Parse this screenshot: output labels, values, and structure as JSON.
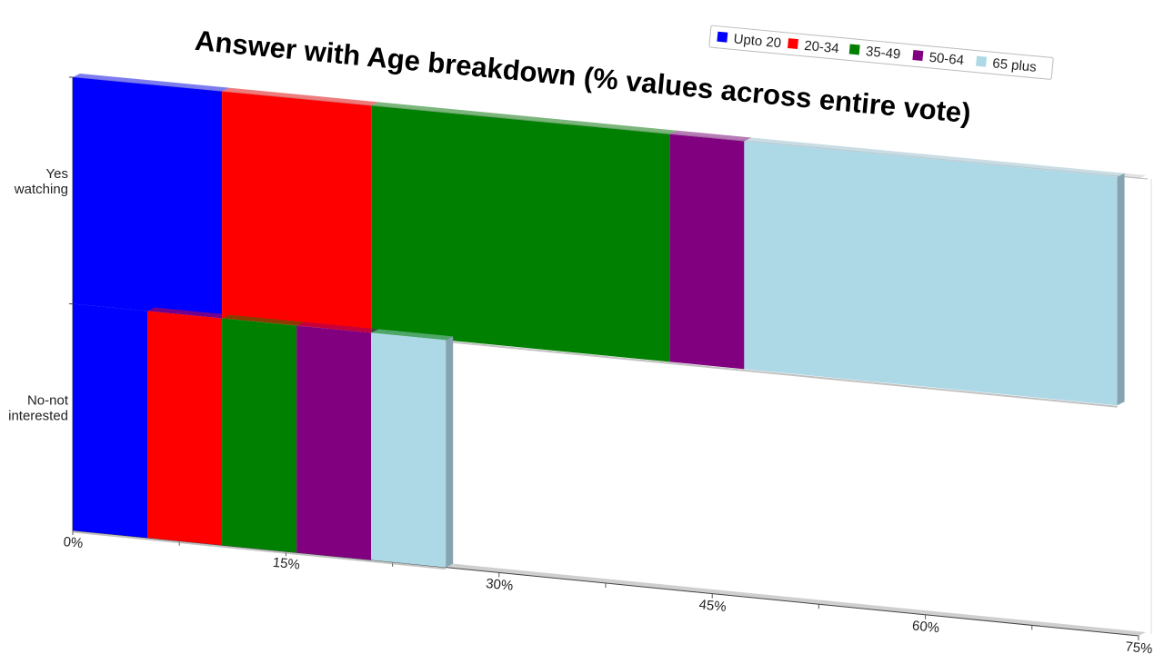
{
  "chart_data": {
    "type": "bar",
    "orientation": "horizontal",
    "stacked": true,
    "three_d": true,
    "title": "Answer with Age breakdown (% values across entire vote)",
    "categories": [
      {
        "lines": [
          "Yes",
          "watching"
        ]
      },
      {
        "lines": [
          "No-not",
          "interested"
        ]
      }
    ],
    "series": [
      {
        "name": "Upto 20",
        "color": "#0000ff",
        "values": [
          10.5,
          5.25
        ]
      },
      {
        "name": "20-34",
        "color": "#ff0000",
        "values": [
          10.5,
          5.25
        ]
      },
      {
        "name": "35-49",
        "color": "#008000",
        "values": [
          21,
          5.25
        ]
      },
      {
        "name": "50-64",
        "color": "#800080",
        "values": [
          5.25,
          5.25
        ]
      },
      {
        "name": "65 plus",
        "color": "#add8e6",
        "values": [
          26.25,
          5.25
        ]
      }
    ],
    "xlim": [
      0,
      75
    ],
    "xticks": [
      {
        "value": 0,
        "label": "0%"
      },
      {
        "value": 15,
        "label": "15%"
      },
      {
        "value": 30,
        "label": "30%"
      },
      {
        "value": 45,
        "label": "45%"
      },
      {
        "value": 60,
        "label": "60%"
      },
      {
        "value": 75,
        "label": "75%"
      }
    ],
    "legend_position": "top-right",
    "grid": false
  }
}
